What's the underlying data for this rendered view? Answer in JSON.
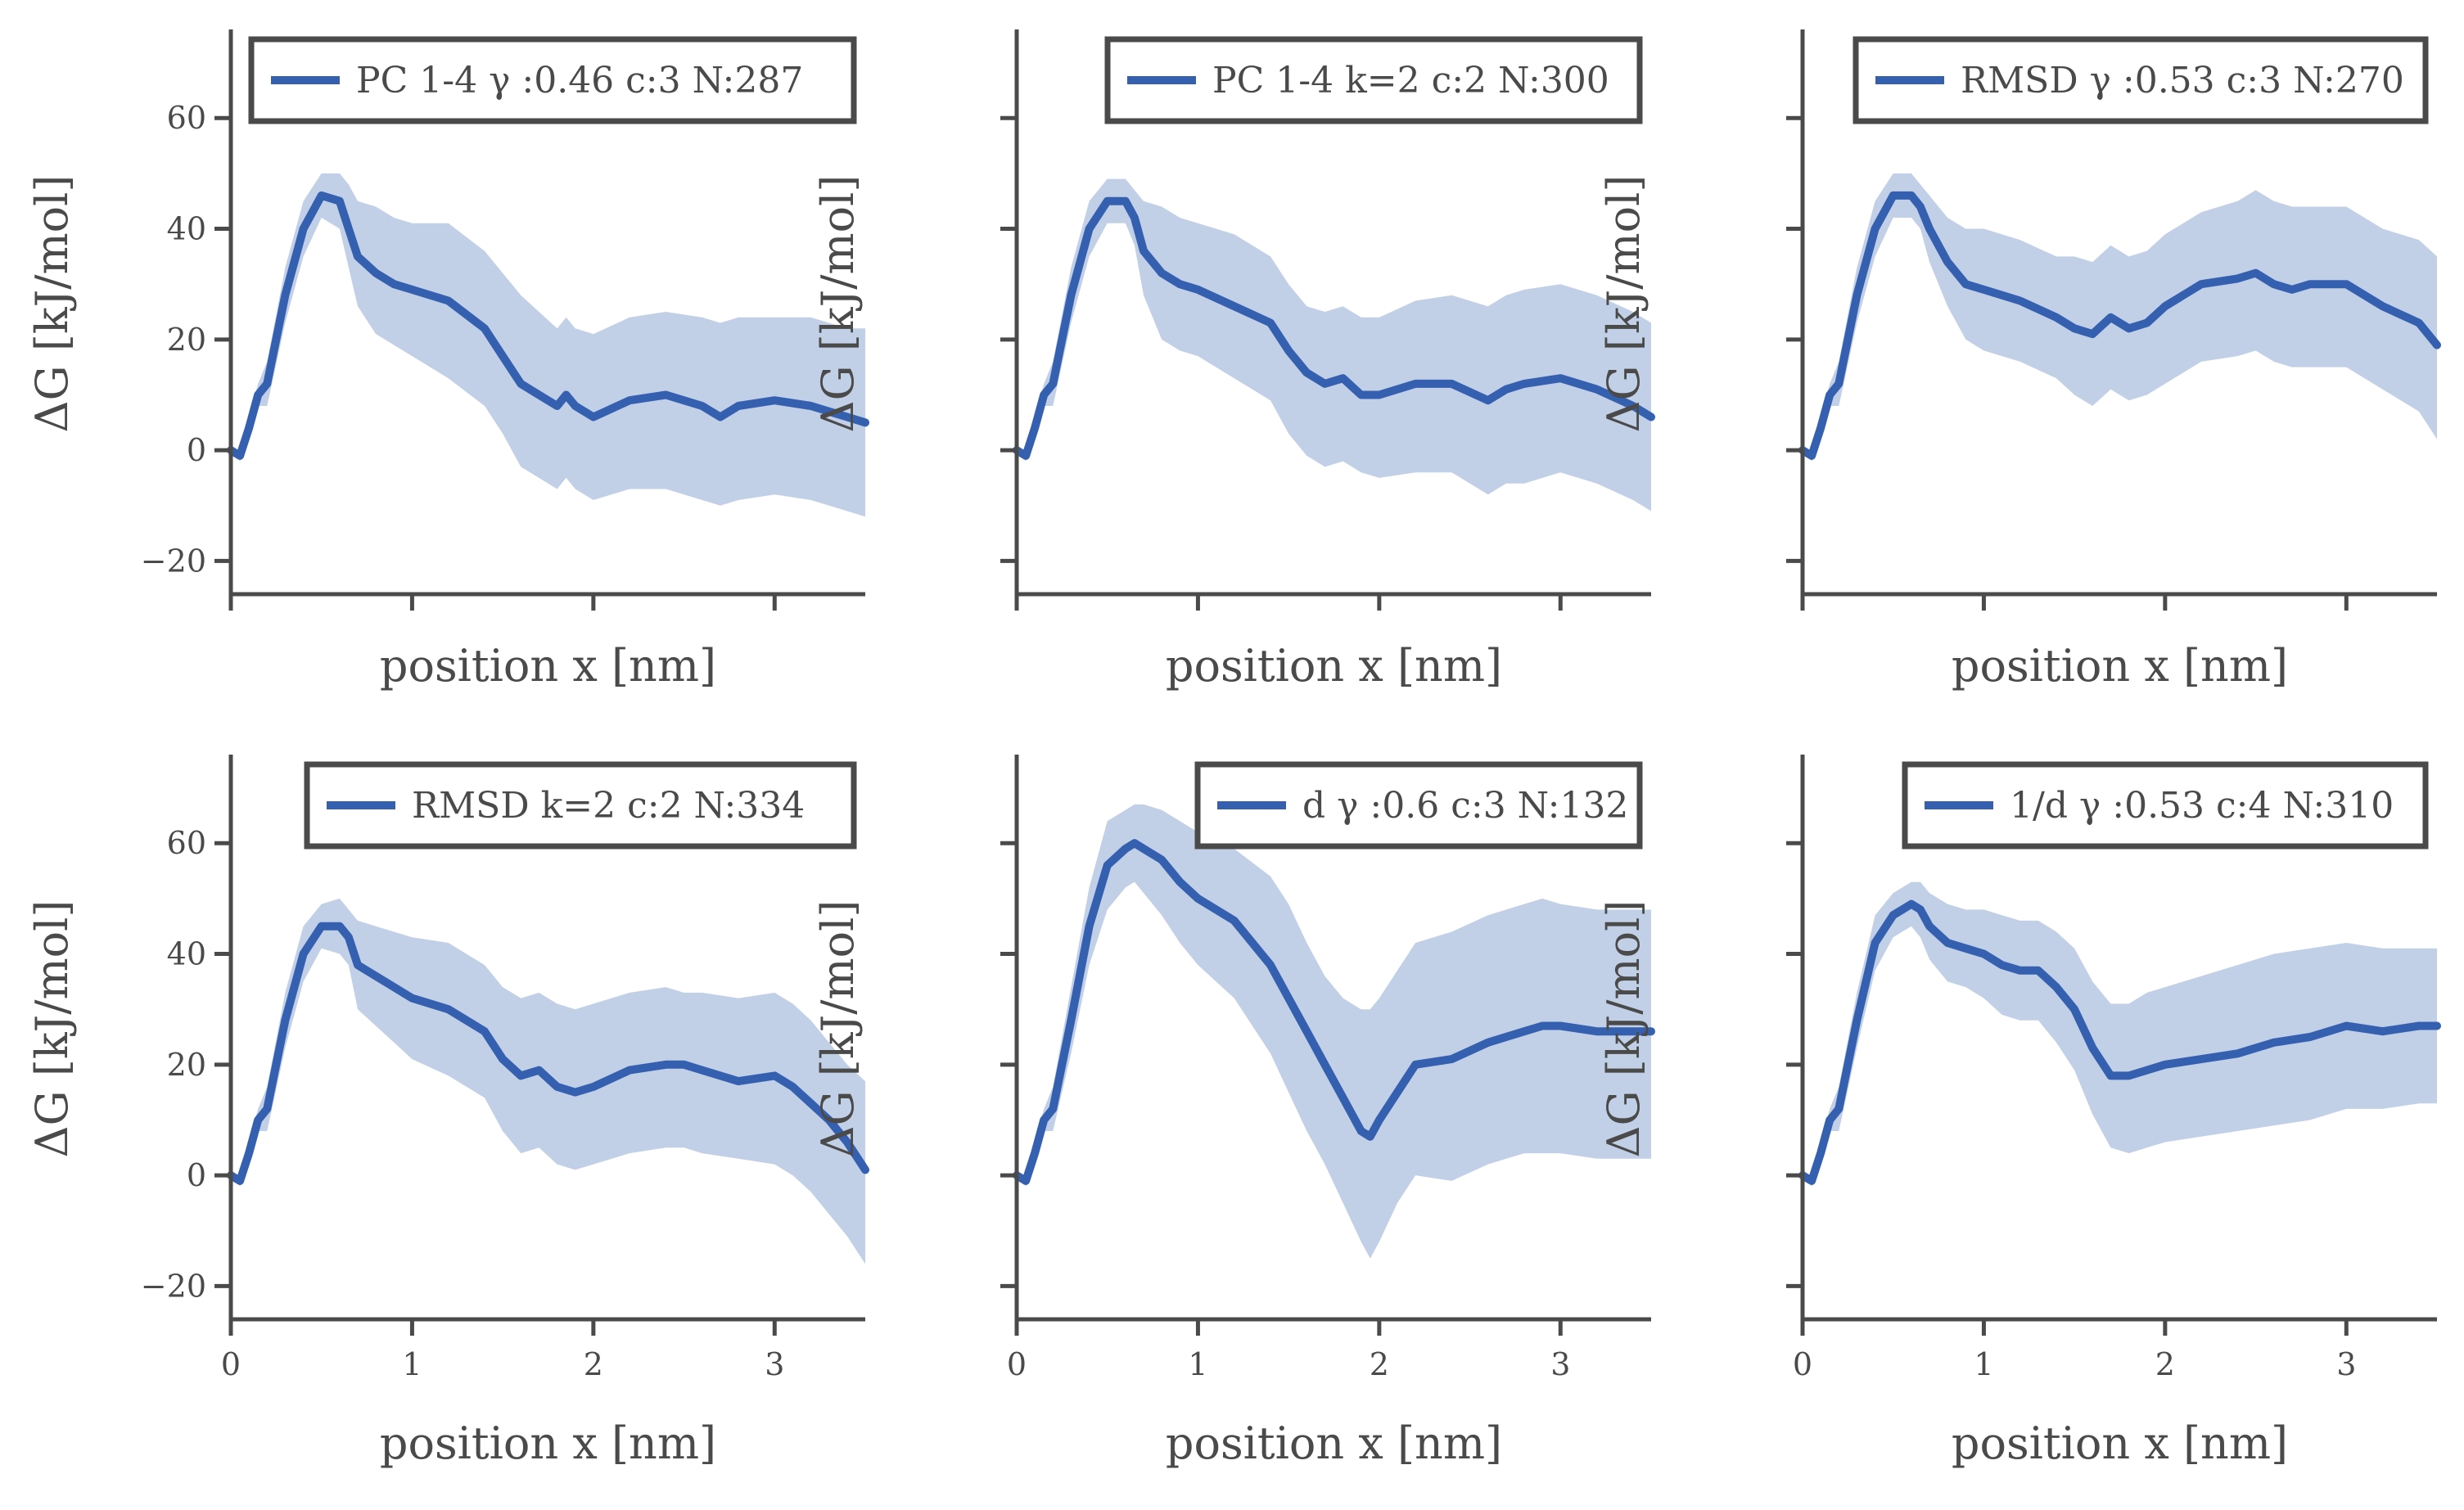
{
  "colors": {
    "line": "#3560b0",
    "band": "#c2d0e7",
    "axis": "#4a4a4a"
  },
  "axes_text": {
    "xlabel": "position x [nm]",
    "ylabel": "ΔG [kJ/mol]"
  },
  "chart_data": [
    {
      "type": "line",
      "legend": "PC 1-4 γ :0.46 c:3 N:287",
      "legend_position": "upper-right",
      "xlim": [
        0,
        3.5
      ],
      "ylim": [
        -26,
        76
      ],
      "xticks": [
        0,
        1,
        2,
        3
      ],
      "yticks": [
        -20,
        0,
        20,
        40,
        60
      ],
      "x": [
        0,
        0.05,
        0.1,
        0.15,
        0.2,
        0.3,
        0.4,
        0.5,
        0.6,
        0.65,
        0.7,
        0.8,
        0.9,
        1.0,
        1.2,
        1.4,
        1.5,
        1.6,
        1.7,
        1.8,
        1.85,
        1.9,
        2.0,
        2.2,
        2.4,
        2.6,
        2.7,
        2.8,
        3.0,
        3.2,
        3.4,
        3.5
      ],
      "y": [
        0,
        -1,
        4,
        10,
        12,
        28,
        40,
        46,
        45,
        40,
        35,
        32,
        30,
        29,
        27,
        22,
        17,
        12,
        10,
        8,
        10,
        8,
        6,
        9,
        10,
        8,
        6,
        8,
        9,
        8,
        6,
        5
      ],
      "upper": [
        0,
        0,
        6,
        12,
        16,
        33,
        45,
        50,
        50,
        48,
        45,
        44,
        42,
        41,
        41,
        36,
        32,
        28,
        25,
        22,
        24,
        22,
        21,
        24,
        25,
        24,
        23,
        24,
        24,
        24,
        22,
        22
      ],
      "lower": [
        0,
        -2,
        2,
        8,
        8,
        23,
        35,
        42,
        40,
        33,
        26,
        21,
        19,
        17,
        13,
        8,
        3,
        -3,
        -5,
        -7,
        -5,
        -7,
        -9,
        -7,
        -7,
        -9,
        -10,
        -9,
        -8,
        -9,
        -11,
        -12
      ]
    },
    {
      "type": "line",
      "legend": "PC 1-4 k=2 c:2 N:300",
      "legend_position": "upper-right",
      "xlim": [
        0,
        3.5
      ],
      "ylim": [
        -26,
        76
      ],
      "xticks": [
        0,
        1,
        2,
        3
      ],
      "yticks": [
        -20,
        0,
        20,
        40,
        60
      ],
      "x": [
        0,
        0.05,
        0.1,
        0.15,
        0.2,
        0.3,
        0.4,
        0.5,
        0.6,
        0.65,
        0.7,
        0.8,
        0.9,
        1.0,
        1.2,
        1.4,
        1.5,
        1.6,
        1.7,
        1.8,
        1.9,
        2.0,
        2.2,
        2.4,
        2.6,
        2.7,
        2.8,
        3.0,
        3.2,
        3.4,
        3.5
      ],
      "y": [
        0,
        -1,
        4,
        10,
        12,
        28,
        40,
        45,
        45,
        42,
        36,
        32,
        30,
        29,
        26,
        23,
        18,
        14,
        12,
        13,
        10,
        10,
        12,
        12,
        9,
        11,
        12,
        13,
        11,
        8,
        6
      ],
      "upper": [
        0,
        0,
        6,
        12,
        16,
        33,
        45,
        49,
        49,
        47,
        45,
        44,
        42,
        41,
        39,
        35,
        30,
        26,
        25,
        26,
        24,
        24,
        27,
        28,
        26,
        28,
        29,
        30,
        28,
        25,
        23
      ],
      "lower": [
        0,
        -2,
        2,
        8,
        8,
        23,
        35,
        41,
        41,
        37,
        28,
        20,
        18,
        17,
        13,
        9,
        3,
        -1,
        -3,
        -2,
        -4,
        -5,
        -4,
        -4,
        -8,
        -6,
        -6,
        -4,
        -6,
        -9,
        -11
      ]
    },
    {
      "type": "line",
      "legend": "RMSD γ :0.53 c:3 N:270",
      "legend_position": "upper-right",
      "xlim": [
        0,
        3.5
      ],
      "ylim": [
        -26,
        76
      ],
      "xticks": [
        0,
        1,
        2,
        3
      ],
      "yticks": [
        -20,
        0,
        20,
        40,
        60
      ],
      "x": [
        0,
        0.05,
        0.1,
        0.15,
        0.2,
        0.3,
        0.4,
        0.5,
        0.6,
        0.65,
        0.7,
        0.8,
        0.9,
        1.0,
        1.2,
        1.4,
        1.5,
        1.6,
        1.7,
        1.8,
        1.9,
        2.0,
        2.2,
        2.4,
        2.5,
        2.6,
        2.7,
        2.8,
        3.0,
        3.2,
        3.4,
        3.5
      ],
      "y": [
        0,
        -1,
        4,
        10,
        12,
        28,
        40,
        46,
        46,
        44,
        40,
        34,
        30,
        29,
        27,
        24,
        22,
        21,
        24,
        22,
        23,
        26,
        30,
        31,
        32,
        30,
        29,
        30,
        30,
        26,
        23,
        19
      ],
      "upper": [
        0,
        0,
        6,
        12,
        16,
        33,
        45,
        50,
        50,
        48,
        46,
        42,
        40,
        40,
        38,
        35,
        35,
        34,
        37,
        35,
        36,
        39,
        43,
        45,
        47,
        45,
        44,
        44,
        44,
        40,
        38,
        35
      ],
      "lower": [
        0,
        -2,
        2,
        8,
        8,
        23,
        35,
        42,
        42,
        40,
        34,
        26,
        20,
        18,
        16,
        13,
        10,
        8,
        11,
        9,
        10,
        12,
        16,
        17,
        18,
        16,
        15,
        15,
        15,
        11,
        7,
        2
      ]
    },
    {
      "type": "line",
      "legend": "RMSD k=2 c:2 N:334",
      "legend_position": "upper-right",
      "xlim": [
        0,
        3.5
      ],
      "ylim": [
        -26,
        76
      ],
      "xticks": [
        0,
        1,
        2,
        3
      ],
      "yticks": [
        -20,
        0,
        20,
        40,
        60
      ],
      "x": [
        0,
        0.05,
        0.1,
        0.15,
        0.2,
        0.3,
        0.4,
        0.5,
        0.6,
        0.65,
        0.7,
        0.8,
        0.9,
        1.0,
        1.2,
        1.4,
        1.5,
        1.6,
        1.7,
        1.8,
        1.9,
        2.0,
        2.2,
        2.4,
        2.5,
        2.6,
        2.8,
        3.0,
        3.1,
        3.2,
        3.3,
        3.4,
        3.5
      ],
      "y": [
        0,
        -1,
        4,
        10,
        12,
        28,
        40,
        45,
        45,
        43,
        38,
        36,
        34,
        32,
        30,
        26,
        21,
        18,
        19,
        16,
        15,
        16,
        19,
        20,
        20,
        19,
        17,
        18,
        16,
        13,
        10,
        6,
        1
      ],
      "upper": [
        0,
        0,
        6,
        12,
        16,
        33,
        45,
        49,
        50,
        48,
        46,
        45,
        44,
        43,
        42,
        38,
        34,
        32,
        33,
        31,
        30,
        31,
        33,
        34,
        33,
        33,
        32,
        33,
        31,
        28,
        24,
        20,
        17
      ],
      "lower": [
        0,
        -2,
        2,
        8,
        8,
        23,
        35,
        41,
        40,
        38,
        30,
        27,
        24,
        21,
        18,
        14,
        8,
        4,
        5,
        2,
        1,
        2,
        4,
        5,
        5,
        4,
        3,
        2,
        0,
        -3,
        -7,
        -11,
        -16
      ]
    },
    {
      "type": "line",
      "legend": "d γ :0.6 c:3 N:132",
      "legend_position": "upper-right",
      "xlim": [
        0,
        3.5
      ],
      "ylim": [
        -26,
        76
      ],
      "xticks": [
        0,
        1,
        2,
        3
      ],
      "yticks": [
        -20,
        0,
        20,
        40,
        60
      ],
      "x": [
        0,
        0.05,
        0.1,
        0.15,
        0.2,
        0.3,
        0.4,
        0.5,
        0.6,
        0.65,
        0.7,
        0.8,
        0.9,
        1.0,
        1.2,
        1.4,
        1.5,
        1.6,
        1.7,
        1.8,
        1.9,
        1.95,
        2.0,
        2.1,
        2.2,
        2.4,
        2.6,
        2.8,
        2.9,
        3.0,
        3.2,
        3.4,
        3.5
      ],
      "y": [
        0,
        -1,
        4,
        10,
        12,
        28,
        45,
        56,
        59,
        60,
        59,
        57,
        53,
        50,
        46,
        38,
        32,
        26,
        20,
        14,
        8,
        7,
        10,
        15,
        20,
        21,
        24,
        26,
        27,
        27,
        26,
        26,
        26
      ],
      "upper": [
        0,
        0,
        6,
        12,
        16,
        34,
        52,
        64,
        66,
        67,
        67,
        66,
        64,
        62,
        59,
        54,
        49,
        42,
        36,
        32,
        30,
        30,
        32,
        37,
        42,
        44,
        47,
        49,
        50,
        49,
        48,
        48,
        48
      ],
      "lower": [
        0,
        -2,
        2,
        8,
        8,
        22,
        38,
        48,
        52,
        53,
        51,
        47,
        42,
        38,
        32,
        22,
        15,
        8,
        2,
        -5,
        -12,
        -15,
        -12,
        -5,
        0,
        -1,
        2,
        4,
        4,
        4,
        3,
        3,
        3
      ]
    },
    {
      "type": "line",
      "legend": "1/d γ :0.53 c:4 N:310",
      "legend_position": "upper-right",
      "xlim": [
        0,
        3.5
      ],
      "ylim": [
        -26,
        76
      ],
      "xticks": [
        0,
        1,
        2,
        3
      ],
      "yticks": [
        -20,
        0,
        20,
        40,
        60
      ],
      "x": [
        0,
        0.05,
        0.1,
        0.15,
        0.2,
        0.3,
        0.4,
        0.5,
        0.6,
        0.65,
        0.7,
        0.8,
        0.9,
        1.0,
        1.1,
        1.2,
        1.3,
        1.4,
        1.5,
        1.6,
        1.7,
        1.8,
        1.9,
        2.0,
        2.2,
        2.4,
        2.6,
        2.8,
        3.0,
        3.2,
        3.4,
        3.5
      ],
      "y": [
        0,
        -1,
        4,
        10,
        12,
        28,
        42,
        47,
        49,
        48,
        45,
        42,
        41,
        40,
        38,
        37,
        37,
        34,
        30,
        23,
        18,
        18,
        19,
        20,
        21,
        22,
        24,
        25,
        27,
        26,
        27,
        27
      ],
      "upper": [
        0,
        0,
        6,
        12,
        16,
        33,
        47,
        51,
        53,
        53,
        51,
        49,
        48,
        48,
        47,
        46,
        46,
        44,
        41,
        35,
        31,
        31,
        33,
        34,
        36,
        38,
        40,
        41,
        42,
        41,
        41,
        41
      ],
      "lower": [
        0,
        -2,
        2,
        8,
        8,
        23,
        37,
        43,
        45,
        43,
        39,
        35,
        34,
        32,
        29,
        28,
        28,
        24,
        19,
        11,
        5,
        4,
        5,
        6,
        7,
        8,
        9,
        10,
        12,
        12,
        13,
        13
      ]
    }
  ]
}
